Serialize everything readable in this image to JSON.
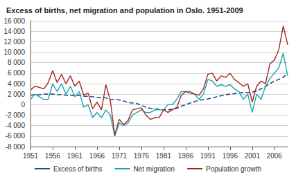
{
  "chart_data": {
    "type": "line",
    "title": "Excess of births, net migration and population in Oslo. 1951-2009",
    "categories": [
      "1951",
      null,
      null,
      null,
      null,
      "1956",
      null,
      null,
      null,
      null,
      "1961",
      null,
      null,
      null,
      null,
      "1966",
      null,
      null,
      null,
      null,
      "1971",
      null,
      null,
      null,
      null,
      "1976",
      null,
      null,
      null,
      null,
      "1981",
      null,
      null,
      null,
      null,
      "1986",
      null,
      null,
      null,
      null,
      "1991",
      null,
      null,
      null,
      null,
      "1996",
      null,
      null,
      null,
      null,
      "2001",
      null,
      null,
      null,
      null,
      "2006",
      null,
      null,
      null
    ],
    "series": [
      {
        "name": "Excess of births",
        "color": "#1f4f8f",
        "line_style": "dashed",
        "values": [
          1800,
          1900,
          1900,
          2000,
          2000,
          2000,
          1900,
          1900,
          1800,
          1800,
          1700,
          1800,
          1600,
          1600,
          1500,
          1400,
          1300,
          1300,
          1000,
          1000,
          900,
          700,
          400,
          300,
          200,
          -100,
          -500,
          -700,
          -800,
          -900,
          -1000,
          -1000,
          -900,
          -700,
          -300,
          0,
          300,
          600,
          800,
          1000,
          1100,
          1300,
          1500,
          1700,
          1900,
          2000,
          2100,
          2200,
          2300,
          2300,
          2400,
          2600,
          3000,
          3500,
          4000,
          4500,
          4800,
          5200,
          6000
        ]
      },
      {
        "name": "Net migration",
        "color": "#1ba1b3",
        "line_style": "solid",
        "values": [
          1000,
          2000,
          1500,
          1000,
          1000,
          4000,
          2500,
          4000,
          2000,
          3500,
          1500,
          2500,
          -500,
          0,
          -2500,
          -1500,
          -2500,
          -1000,
          -2000,
          -6000,
          -3500,
          -4000,
          -3500,
          -2000,
          -1500,
          -1000,
          -1500,
          -1500,
          -1000,
          -1000,
          -1000,
          0,
          0,
          1000,
          2500,
          2500,
          2500,
          2000,
          1000,
          2000,
          4800,
          4500,
          3500,
          3800,
          3500,
          3800,
          3000,
          2500,
          1000,
          2000,
          -1500,
          2000,
          1000,
          3500,
          5000,
          6000,
          7000,
          9800,
          5500
        ]
      },
      {
        "name": "Population growth",
        "color": "#a3261e",
        "line_style": "solid",
        "values": [
          2800,
          3500,
          3300,
          3000,
          4200,
          6500,
          4200,
          5800,
          4000,
          5500,
          3500,
          4500,
          1800,
          2200,
          -800,
          500,
          -1000,
          3800,
          800,
          -5800,
          -2800,
          -3800,
          -3000,
          -1000,
          -800,
          -600,
          -2000,
          -2800,
          -2500,
          -2500,
          -1000,
          -1500,
          -1000,
          -500,
          1800,
          2500,
          2200,
          2000,
          1800,
          3000,
          5800,
          6000,
          4500,
          5500,
          5200,
          6000,
          4800,
          4200,
          3500,
          4000,
          500,
          3500,
          4500,
          4000,
          7800,
          8500,
          10500,
          15000,
          11400
        ]
      }
    ],
    "ylim": [
      -8000,
      16000
    ],
    "yticks": [
      {
        "value": -8000,
        "label": "-8 000"
      },
      {
        "value": -6000,
        "label": "-6 000"
      },
      {
        "value": -4000,
        "label": "-4 000"
      },
      {
        "value": -2000,
        "label": "-2 000"
      },
      0,
      {
        "value": 2000,
        "label": "2 000"
      },
      {
        "value": 4000,
        "label": "4 000"
      },
      {
        "value": 6000,
        "label": "6 000"
      },
      {
        "value": 8000,
        "label": "8 000"
      },
      {
        "value": 10000,
        "label": "10 000"
      },
      {
        "value": 12000,
        "label": "12 000"
      },
      {
        "value": 14000,
        "label": "14 000"
      },
      {
        "value": 16000,
        "label": "16 000"
      }
    ],
    "grid": true,
    "legend": "bottom"
  }
}
